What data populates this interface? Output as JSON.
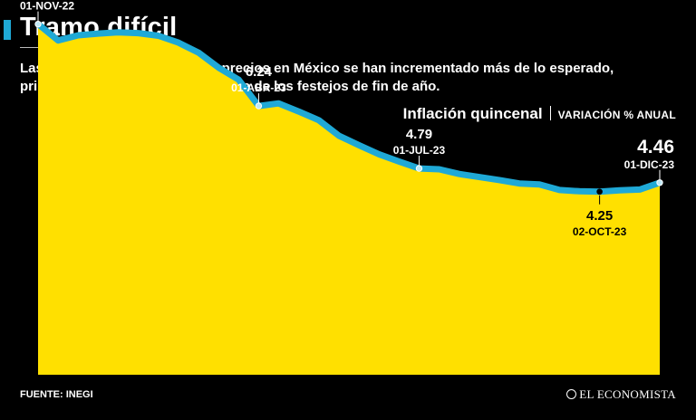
{
  "header": {
    "title": "Tramo difícil",
    "subtitle": "Las tres últimas quincenas los precios en México se han incrementado más de lo esperado, principalmente como consecuencia de los festejos de fin de año."
  },
  "legend": {
    "label": "Inflación quincenal",
    "unit": "VARIACIÓN % ANUAL"
  },
  "footer": {
    "source": "FUENTE: INEGI",
    "brand": "EL ECONOMISTA"
  },
  "colors": {
    "background": "#000000",
    "area_fill": "#ffe000",
    "line": "#1fa9d6",
    "text": "#ffffff"
  },
  "chart_data": {
    "type": "area",
    "series": [
      {
        "values": [
          8.14,
          7.76,
          7.88,
          7.92,
          7.95,
          7.93,
          7.87,
          7.71,
          7.48,
          7.13,
          6.85,
          6.24,
          6.3,
          6.11,
          5.91,
          5.55,
          5.33,
          5.12,
          4.95,
          4.79,
          4.77,
          4.66,
          4.59,
          4.52,
          4.44,
          4.42,
          4.29,
          4.26,
          4.25,
          4.28,
          4.3,
          4.46
        ]
      }
    ],
    "ylim": [
      0,
      8.7
    ],
    "grid": false,
    "annotations": [
      {
        "index": 0,
        "value": "8.14",
        "date": "01-NOV-22",
        "position": "above"
      },
      {
        "index": 11,
        "value": "6.24",
        "date": "01-ABR-23",
        "position": "above"
      },
      {
        "index": 19,
        "value": "4.79",
        "date": "01-JUL-23",
        "position": "above"
      },
      {
        "index": 28,
        "value": "4.25",
        "date": "02-OCT-23",
        "position": "below"
      },
      {
        "index": 31,
        "value": "4.46",
        "date": "01-DIC-23",
        "position": "above",
        "emphasis": true
      }
    ]
  }
}
